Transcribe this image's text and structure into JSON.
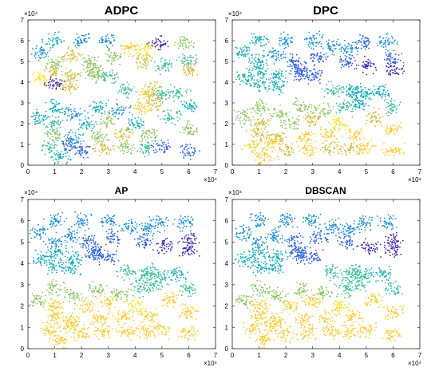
{
  "palette": [
    "#3d26a8",
    "#2c5fd8",
    "#1a8ed2",
    "#13aab4",
    "#3cbd97",
    "#8dc562",
    "#d3bc3d",
    "#f9cc2c",
    "#f7e314"
  ],
  "chart_data": [
    {
      "type": "scatter",
      "title": "ADPC",
      "xlim": [
        0,
        7
      ],
      "ylim": [
        0,
        7
      ],
      "xticks": [
        "0",
        "1",
        "2",
        "3",
        "4",
        "5",
        "6",
        "7"
      ],
      "yticks": [
        "0",
        "1",
        "2",
        "3",
        "4",
        "5",
        "6",
        "7"
      ],
      "x_exponent": "×10⁴",
      "y_exponent": "×10⁴",
      "cluster_centers": [
        [
          0.45,
          5.45
        ],
        [
          1.0,
          6.0
        ],
        [
          2.0,
          6.0
        ],
        [
          3.0,
          6.0
        ],
        [
          3.8,
          5.7
        ],
        [
          4.4,
          5.6
        ],
        [
          4.9,
          5.9
        ],
        [
          5.8,
          5.9
        ],
        [
          0.5,
          4.2
        ],
        [
          1.0,
          5.0
        ],
        [
          1.6,
          5.3
        ],
        [
          2.3,
          5.0
        ],
        [
          2.5,
          4.5
        ],
        [
          3.2,
          5.2
        ],
        [
          4.3,
          5.0
        ],
        [
          5.1,
          4.8
        ],
        [
          6.0,
          5.1
        ],
        [
          6.0,
          4.6
        ],
        [
          1.0,
          4.5
        ],
        [
          1.7,
          4.3
        ],
        [
          2.5,
          4.4
        ],
        [
          3.0,
          4.3
        ],
        [
          1.0,
          3.9
        ],
        [
          1.6,
          3.8
        ],
        [
          3.7,
          3.6
        ],
        [
          4.4,
          3.5
        ],
        [
          4.6,
          3.6
        ],
        [
          5.0,
          3.4
        ],
        [
          5.6,
          3.5
        ],
        [
          1.0,
          2.8
        ],
        [
          1.7,
          2.5
        ],
        [
          2.6,
          2.8
        ],
        [
          3.4,
          2.6
        ],
        [
          4.2,
          2.8
        ],
        [
          4.7,
          3.0
        ],
        [
          6.0,
          2.8
        ],
        [
          0.4,
          2.3
        ],
        [
          1.0,
          2.0
        ],
        [
          2.2,
          2.0
        ],
        [
          3.0,
          2.2
        ],
        [
          4.0,
          2.0
        ],
        [
          5.3,
          2.3
        ],
        [
          6.0,
          1.7
        ],
        [
          1.0,
          1.5
        ],
        [
          1.7,
          1.3
        ],
        [
          2.7,
          1.4
        ],
        [
          3.6,
          1.5
        ],
        [
          4.5,
          1.5
        ],
        [
          0.8,
          0.9
        ],
        [
          1.5,
          1.1
        ],
        [
          2.0,
          0.7
        ],
        [
          2.8,
          0.8
        ],
        [
          3.7,
          0.8
        ],
        [
          4.4,
          0.8
        ],
        [
          5.0,
          0.9
        ],
        [
          6.0,
          0.7
        ],
        [
          1.2,
          0.4
        ]
      ],
      "cluster_colors": [
        2,
        3,
        2,
        2,
        7,
        8,
        0,
        5,
        8,
        5,
        6,
        5,
        5,
        5,
        6,
        4,
        4,
        6,
        6,
        6,
        5,
        4,
        0,
        6,
        4,
        7,
        6,
        4,
        4,
        3,
        2,
        3,
        2,
        7,
        6,
        3,
        3,
        4,
        3,
        5,
        3,
        4,
        5,
        5,
        3,
        5,
        6,
        5,
        4,
        1,
        1,
        6,
        5,
        4,
        1,
        1,
        3
      ]
    },
    {
      "type": "scatter",
      "title": "DPC",
      "xlim": [
        0,
        7
      ],
      "ylim": [
        0,
        7
      ],
      "xticks": [
        "0",
        "1",
        "2",
        "3",
        "4",
        "5",
        "6",
        "7"
      ],
      "yticks": [
        "0",
        "1",
        "2",
        "3",
        "4",
        "5",
        "6",
        "7"
      ],
      "x_exponent": "×10⁴",
      "y_exponent": "×10⁴",
      "cluster_centers": [
        [
          0.45,
          5.45
        ],
        [
          1.0,
          6.0
        ],
        [
          2.0,
          6.0
        ],
        [
          3.0,
          6.0
        ],
        [
          3.8,
          5.7
        ],
        [
          4.4,
          5.6
        ],
        [
          4.9,
          5.9
        ],
        [
          5.8,
          5.9
        ],
        [
          0.5,
          4.2
        ],
        [
          1.0,
          5.0
        ],
        [
          1.6,
          5.3
        ],
        [
          2.3,
          5.0
        ],
        [
          2.5,
          4.5
        ],
        [
          3.2,
          5.2
        ],
        [
          4.3,
          5.0
        ],
        [
          5.1,
          4.8
        ],
        [
          6.0,
          5.1
        ],
        [
          6.0,
          4.6
        ],
        [
          1.0,
          4.5
        ],
        [
          1.7,
          4.3
        ],
        [
          2.5,
          4.4
        ],
        [
          3.0,
          4.3
        ],
        [
          1.0,
          3.9
        ],
        [
          1.6,
          3.8
        ],
        [
          3.7,
          3.6
        ],
        [
          4.4,
          3.5
        ],
        [
          4.6,
          3.6
        ],
        [
          5.0,
          3.4
        ],
        [
          5.6,
          3.5
        ],
        [
          1.0,
          2.8
        ],
        [
          1.7,
          2.5
        ],
        [
          2.6,
          2.8
        ],
        [
          3.4,
          2.6
        ],
        [
          4.2,
          2.8
        ],
        [
          4.7,
          3.0
        ],
        [
          6.0,
          2.8
        ],
        [
          0.4,
          2.3
        ],
        [
          1.0,
          2.0
        ],
        [
          2.2,
          2.0
        ],
        [
          3.0,
          2.2
        ],
        [
          4.0,
          2.0
        ],
        [
          5.3,
          2.3
        ],
        [
          6.0,
          1.7
        ],
        [
          1.0,
          1.5
        ],
        [
          1.7,
          1.3
        ],
        [
          2.7,
          1.4
        ],
        [
          3.6,
          1.5
        ],
        [
          4.5,
          1.5
        ],
        [
          0.8,
          0.9
        ],
        [
          1.5,
          1.1
        ],
        [
          2.0,
          0.7
        ],
        [
          2.8,
          0.8
        ],
        [
          3.7,
          0.8
        ],
        [
          4.4,
          0.8
        ],
        [
          5.0,
          0.9
        ],
        [
          6.0,
          0.7
        ],
        [
          1.2,
          0.4
        ]
      ],
      "cluster_colors": [
        3,
        3,
        2,
        2,
        2,
        2,
        1,
        2,
        3,
        3,
        2,
        1,
        1,
        1,
        1,
        0,
        1,
        0,
        3,
        3,
        1,
        1,
        3,
        3,
        4,
        3,
        3,
        3,
        3,
        5,
        5,
        5,
        5,
        4,
        3,
        4,
        5,
        6,
        5,
        6,
        8,
        6,
        7,
        6,
        6,
        7,
        7,
        7,
        7,
        7,
        6,
        7,
        6,
        6,
        7,
        7,
        7
      ]
    },
    {
      "type": "scatter",
      "title": "AP",
      "xlim": [
        0,
        7
      ],
      "ylim": [
        0,
        7
      ],
      "xticks": [
        "0",
        "1",
        "2",
        "3",
        "4",
        "5",
        "6",
        "7"
      ],
      "yticks": [
        "0",
        "1",
        "2",
        "3",
        "4",
        "5",
        "6",
        "7"
      ],
      "x_exponent": "×10⁴",
      "y_exponent": "×10⁴",
      "cluster_centers": [
        [
          0.45,
          5.45
        ],
        [
          1.0,
          6.0
        ],
        [
          2.0,
          6.0
        ],
        [
          3.0,
          6.0
        ],
        [
          3.8,
          5.7
        ],
        [
          4.4,
          5.6
        ],
        [
          4.9,
          5.9
        ],
        [
          5.8,
          5.9
        ],
        [
          0.5,
          4.2
        ],
        [
          1.0,
          5.0
        ],
        [
          1.6,
          5.3
        ],
        [
          2.3,
          5.0
        ],
        [
          2.5,
          4.5
        ],
        [
          3.2,
          5.2
        ],
        [
          4.3,
          5.0
        ],
        [
          5.1,
          4.8
        ],
        [
          6.0,
          5.1
        ],
        [
          6.0,
          4.6
        ],
        [
          1.0,
          4.5
        ],
        [
          1.7,
          4.3
        ],
        [
          2.5,
          4.4
        ],
        [
          3.0,
          4.3
        ],
        [
          1.0,
          3.9
        ],
        [
          1.6,
          3.8
        ],
        [
          3.7,
          3.6
        ],
        [
          4.4,
          3.5
        ],
        [
          4.6,
          3.6
        ],
        [
          5.0,
          3.4
        ],
        [
          5.6,
          3.5
        ],
        [
          1.0,
          2.8
        ],
        [
          1.7,
          2.5
        ],
        [
          2.6,
          2.8
        ],
        [
          3.4,
          2.6
        ],
        [
          4.2,
          2.8
        ],
        [
          4.7,
          3.0
        ],
        [
          6.0,
          2.8
        ],
        [
          0.4,
          2.3
        ],
        [
          1.0,
          2.0
        ],
        [
          2.2,
          2.0
        ],
        [
          3.0,
          2.2
        ],
        [
          4.0,
          2.0
        ],
        [
          5.3,
          2.3
        ],
        [
          6.0,
          1.7
        ],
        [
          1.0,
          1.5
        ],
        [
          1.7,
          1.3
        ],
        [
          2.7,
          1.4
        ],
        [
          3.6,
          1.5
        ],
        [
          4.5,
          1.5
        ],
        [
          0.8,
          0.9
        ],
        [
          1.5,
          1.1
        ],
        [
          2.0,
          0.7
        ],
        [
          2.8,
          0.8
        ],
        [
          3.7,
          0.8
        ],
        [
          4.4,
          0.8
        ],
        [
          5.0,
          0.9
        ],
        [
          6.0,
          0.7
        ],
        [
          1.2,
          0.4
        ]
      ],
      "cluster_colors": [
        2,
        2,
        2,
        2,
        2,
        2,
        2,
        2,
        3,
        2,
        2,
        1,
        1,
        1,
        1,
        0,
        0,
        0,
        3,
        3,
        1,
        1,
        3,
        3,
        4,
        4,
        4,
        4,
        3,
        5,
        5,
        5,
        5,
        4,
        4,
        4,
        5,
        7,
        7,
        7,
        8,
        7,
        7,
        7,
        7,
        7,
        7,
        7,
        7,
        7,
        7,
        7,
        7,
        7,
        7,
        7,
        7
      ]
    },
    {
      "type": "scatter",
      "title": "DBSCAN",
      "xlim": [
        0,
        7
      ],
      "ylim": [
        0,
        7
      ],
      "xticks": [
        "0",
        "1",
        "2",
        "3",
        "4",
        "5",
        "6",
        "7"
      ],
      "yticks": [
        "0",
        "1",
        "2",
        "3",
        "4",
        "5",
        "6",
        "7"
      ],
      "x_exponent": "×10⁴",
      "y_exponent": "×10⁴",
      "cluster_centers": [
        [
          0.45,
          5.45
        ],
        [
          1.0,
          6.0
        ],
        [
          2.0,
          6.0
        ],
        [
          3.0,
          6.0
        ],
        [
          3.8,
          5.7
        ],
        [
          4.4,
          5.6
        ],
        [
          4.9,
          5.9
        ],
        [
          5.8,
          5.9
        ],
        [
          0.5,
          4.2
        ],
        [
          1.0,
          5.0
        ],
        [
          1.6,
          5.3
        ],
        [
          2.3,
          5.0
        ],
        [
          2.5,
          4.5
        ],
        [
          3.2,
          5.2
        ],
        [
          4.3,
          5.0
        ],
        [
          5.1,
          4.8
        ],
        [
          6.0,
          5.1
        ],
        [
          6.0,
          4.6
        ],
        [
          1.0,
          4.5
        ],
        [
          1.7,
          4.3
        ],
        [
          2.5,
          4.4
        ],
        [
          3.0,
          4.3
        ],
        [
          1.0,
          3.9
        ],
        [
          1.6,
          3.8
        ],
        [
          3.7,
          3.6
        ],
        [
          4.4,
          3.5
        ],
        [
          4.6,
          3.6
        ],
        [
          5.0,
          3.4
        ],
        [
          5.6,
          3.5
        ],
        [
          1.0,
          2.8
        ],
        [
          1.7,
          2.5
        ],
        [
          2.6,
          2.8
        ],
        [
          3.4,
          2.6
        ],
        [
          4.2,
          2.8
        ],
        [
          4.7,
          3.0
        ],
        [
          6.0,
          2.8
        ],
        [
          0.4,
          2.3
        ],
        [
          1.0,
          2.0
        ],
        [
          2.2,
          2.0
        ],
        [
          3.0,
          2.2
        ],
        [
          4.0,
          2.0
        ],
        [
          5.3,
          2.3
        ],
        [
          6.0,
          1.7
        ],
        [
          1.0,
          1.5
        ],
        [
          1.7,
          1.3
        ],
        [
          2.7,
          1.4
        ],
        [
          3.6,
          1.5
        ],
        [
          4.5,
          1.5
        ],
        [
          0.8,
          0.9
        ],
        [
          1.5,
          1.1
        ],
        [
          2.0,
          0.7
        ],
        [
          2.8,
          0.8
        ],
        [
          3.7,
          0.8
        ],
        [
          4.4,
          0.8
        ],
        [
          5.0,
          0.9
        ],
        [
          6.0,
          0.7
        ],
        [
          1.2,
          0.4
        ]
      ],
      "cluster_colors": [
        2,
        2,
        2,
        2,
        2,
        2,
        2,
        2,
        3,
        2,
        2,
        1,
        1,
        1,
        1,
        0,
        0,
        0,
        3,
        3,
        1,
        1,
        3,
        3,
        4,
        4,
        4,
        4,
        3,
        5,
        5,
        5,
        5,
        4,
        4,
        4,
        5,
        7,
        7,
        7,
        8,
        7,
        7,
        7,
        7,
        7,
        7,
        7,
        7,
        7,
        7,
        7,
        7,
        7,
        7,
        7,
        7
      ]
    }
  ]
}
